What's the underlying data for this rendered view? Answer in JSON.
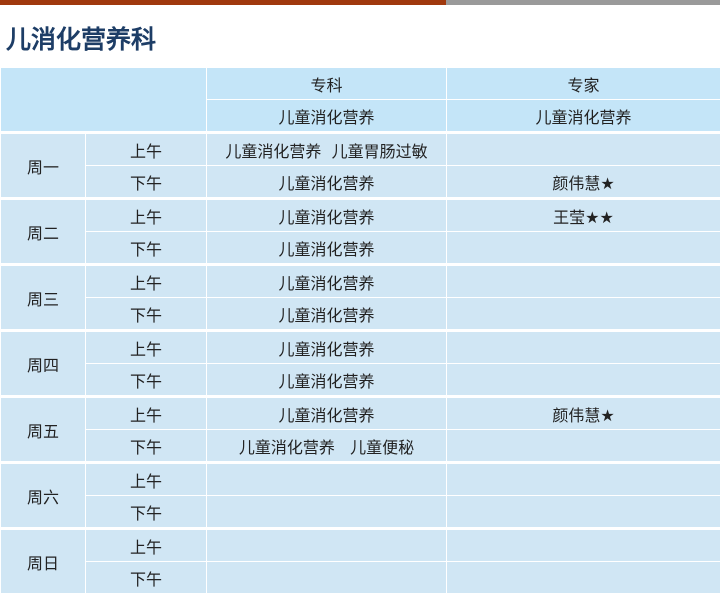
{
  "title": "儿消化营养科",
  "colors": {
    "accent_bar": "#a0390e",
    "title": "#1d3d66",
    "header_bg": "#c4e5f8",
    "cell_bg": "#d0e6f4"
  },
  "header": {
    "col1": "专科",
    "col2": "专家",
    "col1_sub": "儿童消化营养",
    "col2_sub": "儿童消化营养"
  },
  "days": [
    {
      "day": "周一",
      "slots": [
        {
          "period": "上午",
          "specialty": "儿童消化营养  儿童胃肠过敏",
          "expert": ""
        },
        {
          "period": "下午",
          "specialty": "儿童消化营养",
          "expert": "颜伟慧★"
        }
      ]
    },
    {
      "day": "周二",
      "slots": [
        {
          "period": "上午",
          "specialty": "儿童消化营养",
          "expert": "王莹★★"
        },
        {
          "period": "下午",
          "specialty": "儿童消化营养",
          "expert": ""
        }
      ]
    },
    {
      "day": "周三",
      "slots": [
        {
          "period": "上午",
          "specialty": "儿童消化营养",
          "expert": ""
        },
        {
          "period": "下午",
          "specialty": "儿童消化营养",
          "expert": ""
        }
      ]
    },
    {
      "day": "周四",
      "slots": [
        {
          "period": "上午",
          "specialty": "儿童消化营养",
          "expert": ""
        },
        {
          "period": "下午",
          "specialty": "儿童消化营养",
          "expert": ""
        }
      ]
    },
    {
      "day": "周五",
      "slots": [
        {
          "period": "上午",
          "specialty": "儿童消化营养",
          "expert": "颜伟慧★"
        },
        {
          "period": "下午",
          "specialty": "儿童消化营养   儿童便秘",
          "expert": ""
        }
      ]
    },
    {
      "day": "周六",
      "slots": [
        {
          "period": "上午",
          "specialty": "",
          "expert": ""
        },
        {
          "period": "下午",
          "specialty": "",
          "expert": ""
        }
      ]
    },
    {
      "day": "周日",
      "slots": [
        {
          "period": "上午",
          "specialty": "",
          "expert": ""
        },
        {
          "period": "下午",
          "specialty": "",
          "expert": ""
        }
      ]
    }
  ]
}
